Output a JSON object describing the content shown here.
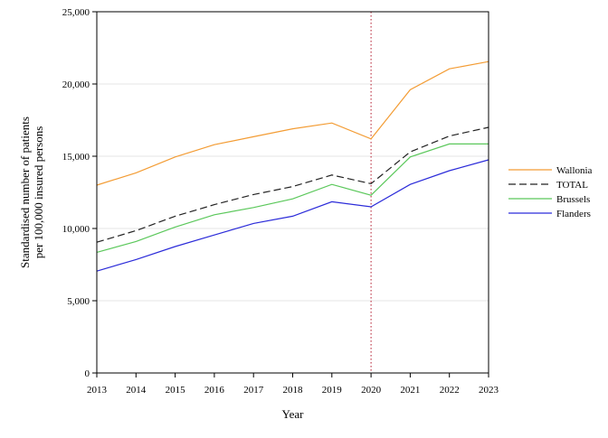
{
  "chart_data": {
    "type": "line",
    "xlabel": "Year",
    "ylabel_lines": [
      "Standardised number of patients",
      "per 100,000 insured persons"
    ],
    "x": [
      2013,
      2014,
      2015,
      2016,
      2017,
      2018,
      2019,
      2020,
      2021,
      2022,
      2023
    ],
    "x_tick_labels": [
      "2013",
      "2014",
      "2015",
      "2016",
      "2017",
      "2018",
      "2019",
      "2020",
      "2021",
      "2022",
      "2023"
    ],
    "ylim": [
      0,
      25000
    ],
    "y_ticks": [
      0,
      5000,
      10000,
      15000,
      20000,
      25000
    ],
    "y_tick_labels": [
      "0",
      "5,000",
      "10,000",
      "15,000",
      "20,000",
      "25,000"
    ],
    "grid": "horizontal",
    "reference_line": {
      "x": 2020,
      "style": "dotted",
      "color": "#b2182b"
    },
    "legend_position": "right",
    "series": [
      {
        "name": "Wallonia",
        "color": "#f39c34",
        "dash": "solid",
        "values": [
          13000,
          13850,
          14950,
          15800,
          16350,
          16900,
          17300,
          16200,
          19600,
          21050,
          21550
        ]
      },
      {
        "name": "TOTAL",
        "color": "#222222",
        "dash": "dashed",
        "values": [
          9050,
          9850,
          10850,
          11650,
          12350,
          12900,
          13700,
          13100,
          15300,
          16400,
          17000
        ]
      },
      {
        "name": "Brussels",
        "color": "#5bc85b",
        "dash": "solid",
        "values": [
          8350,
          9100,
          10100,
          10950,
          11450,
          12050,
          13050,
          12300,
          14950,
          15850,
          15850
        ]
      },
      {
        "name": "Flanders",
        "color": "#2b2bd9",
        "dash": "solid",
        "values": [
          7050,
          7850,
          8750,
          9550,
          10350,
          10850,
          11850,
          11500,
          13050,
          14000,
          14750
        ]
      }
    ]
  }
}
